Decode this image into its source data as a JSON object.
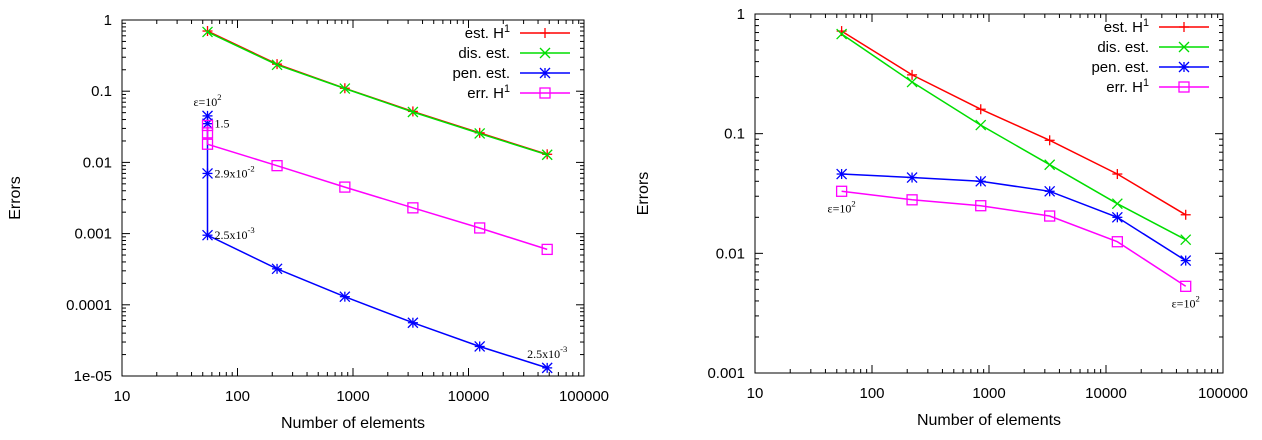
{
  "chart_data": [
    {
      "type": "line",
      "title": "",
      "xlabel": "Number of elements",
      "ylabel": "Errors",
      "xscale": "log",
      "yscale": "log",
      "xlim": [
        10,
        100000
      ],
      "ylim": [
        1e-05,
        1
      ],
      "xticks": [
        "10",
        "100",
        "1000",
        "10000",
        "100000"
      ],
      "yticks": [
        "1e-05",
        "0.0001",
        "0.001",
        "0.01",
        "0.1",
        "1"
      ],
      "grid": false,
      "legend_position": "top-right",
      "series": [
        {
          "name": "est. H",
          "name_sup": "1",
          "color": "#ff0000",
          "marker": "plus",
          "x": [
            55,
            220,
            850,
            3300,
            12500,
            48000
          ],
          "y": [
            0.7,
            0.24,
            0.11,
            0.052,
            0.026,
            0.013
          ]
        },
        {
          "name": "dis. est.",
          "color": "#00dd00",
          "marker": "cross",
          "x": [
            55,
            220,
            850,
            3300,
            12500,
            48000
          ],
          "y": [
            0.68,
            0.235,
            0.109,
            0.051,
            0.0255,
            0.0128
          ]
        },
        {
          "name": "pen. est.",
          "color": "#0000ff",
          "marker": "star",
          "x": [
            55,
            55,
            55,
            55,
            220,
            850,
            3300,
            12500,
            48000
          ],
          "y": [
            0.045,
            0.035,
            0.007,
            0.00095,
            0.00032,
            0.00013,
            5.6e-05,
            2.6e-05,
            1.3e-05
          ]
        },
        {
          "name": "err. H",
          "name_sup": "1",
          "color": "#ff00ff",
          "marker": "square",
          "x": [
            55,
            55,
            55,
            220,
            850,
            3300,
            12500,
            48000
          ],
          "y": [
            0.033,
            0.026,
            0.018,
            0.009,
            0.0045,
            0.0023,
            0.0012,
            0.0006
          ]
        }
      ],
      "annotations": [
        {
          "text": "ε=10",
          "sup": "2",
          "x": 55,
          "y": 0.045,
          "pos": "above"
        },
        {
          "text": "1.5",
          "sup": "",
          "x": 55,
          "y": 0.035,
          "pos": "right"
        },
        {
          "text": "2.9x10",
          "sup": "-2",
          "x": 55,
          "y": 0.007,
          "pos": "right"
        },
        {
          "text": "2.5x10",
          "sup": "-3",
          "x": 55,
          "y": 0.00095,
          "pos": "right"
        },
        {
          "text": "2.5x10",
          "sup": "-3",
          "x": 48000,
          "y": 1.3e-05,
          "pos": "aboveleft"
        }
      ]
    },
    {
      "type": "line",
      "title": "",
      "xlabel": "Number of elements",
      "ylabel": "Errors",
      "xscale": "log",
      "yscale": "log",
      "xlim": [
        10,
        100000
      ],
      "ylim": [
        0.001,
        1
      ],
      "xticks": [
        "10",
        "100",
        "1000",
        "10000",
        "100000"
      ],
      "yticks": [
        "0.001",
        "0.01",
        "0.1",
        "1"
      ],
      "grid": false,
      "legend_position": "top-right",
      "series": [
        {
          "name": "est. H",
          "name_sup": "1",
          "color": "#ff0000",
          "marker": "plus",
          "x": [
            55,
            220,
            850,
            3300,
            12500,
            48000
          ],
          "y": [
            0.72,
            0.31,
            0.16,
            0.088,
            0.046,
            0.021
          ]
        },
        {
          "name": "dis. est.",
          "color": "#00dd00",
          "marker": "cross",
          "x": [
            55,
            220,
            850,
            3300,
            12500,
            48000
          ],
          "y": [
            0.68,
            0.27,
            0.118,
            0.055,
            0.026,
            0.013
          ]
        },
        {
          "name": "pen. est.",
          "color": "#0000ff",
          "marker": "star",
          "x": [
            55,
            220,
            850,
            3300,
            12500,
            48000
          ],
          "y": [
            0.046,
            0.043,
            0.04,
            0.033,
            0.02,
            0.0087
          ]
        },
        {
          "name": "err. H",
          "name_sup": "1",
          "color": "#ff00ff",
          "marker": "square",
          "x": [
            55,
            220,
            850,
            3300,
            12500,
            48000
          ],
          "y": [
            0.033,
            0.028,
            0.025,
            0.0205,
            0.0125,
            0.0053
          ]
        }
      ],
      "annotations": [
        {
          "text": "ε=10",
          "sup": "2",
          "x": 55,
          "y": 0.033,
          "pos": "below"
        },
        {
          "text": "ε=10",
          "sup": "2",
          "x": 48000,
          "y": 0.0053,
          "pos": "below"
        }
      ]
    }
  ]
}
